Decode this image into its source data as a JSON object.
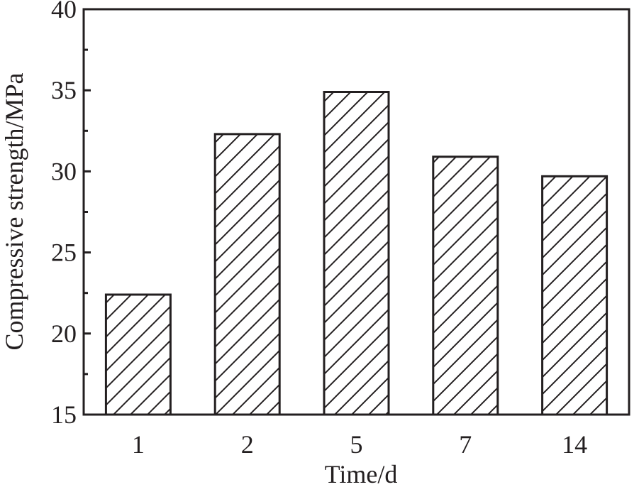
{
  "chart_data": {
    "type": "bar",
    "title": "",
    "xlabel": "Time/d",
    "ylabel": "Compressive strength/MPa",
    "categories": [
      "1",
      "2",
      "5",
      "7",
      "14"
    ],
    "values": [
      22.4,
      32.3,
      34.9,
      30.9,
      29.7
    ],
    "ylim": [
      15,
      40
    ],
    "yticks": [
      15,
      20,
      25,
      30,
      35,
      40
    ],
    "ytick_labels": [
      "15",
      "20",
      "25",
      "30",
      "35",
      "40"
    ],
    "grid": false,
    "bar_fill": "hatched",
    "colors": {
      "ink": "#231f20",
      "background": "#ffffff",
      "bar_face": "#ffffff"
    }
  }
}
